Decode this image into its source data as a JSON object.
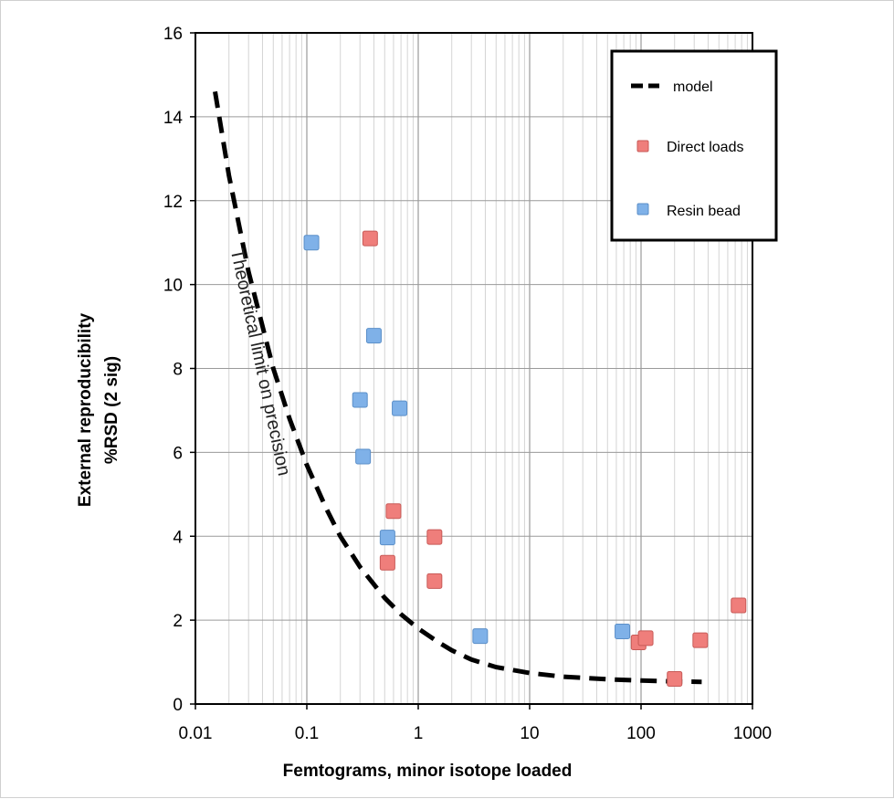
{
  "chart_data": {
    "type": "scatter",
    "title": "",
    "xlabel": "Femtograms, minor isotope loaded",
    "ylabel": "External reproducibility %RSD (2 sig)",
    "ylabel_lines": [
      "External reproducibility",
      "%RSD (2 sig)"
    ],
    "xscale": "log",
    "xlim": [
      0.01,
      1000
    ],
    "ylim": [
      0,
      16
    ],
    "xticks": [
      0.01,
      0.1,
      1,
      10,
      100,
      1000
    ],
    "xtick_labels": [
      "0.01",
      "0.1",
      "1",
      "10",
      "100",
      "1000"
    ],
    "yticks": [
      0,
      2,
      4,
      6,
      8,
      10,
      12,
      14,
      16
    ],
    "ytick_labels": [
      "0",
      "2",
      "4",
      "6",
      "8",
      "10",
      "12",
      "14",
      "16"
    ],
    "grid": true,
    "legend_position": "top-right",
    "annotation": "Theoretical limit on precision",
    "series": [
      {
        "name": "model",
        "kind": "dashed-line",
        "color": "#000000",
        "points": [
          [
            0.015,
            14.6
          ],
          [
            0.02,
            12.6
          ],
          [
            0.03,
            10.3
          ],
          [
            0.05,
            8.0
          ],
          [
            0.07,
            6.8
          ],
          [
            0.1,
            5.7
          ],
          [
            0.15,
            4.65
          ],
          [
            0.2,
            4.0
          ],
          [
            0.3,
            3.27
          ],
          [
            0.5,
            2.53
          ],
          [
            0.7,
            2.14
          ],
          [
            1,
            1.8
          ],
          [
            1.5,
            1.48
          ],
          [
            2,
            1.28
          ],
          [
            3,
            1.06
          ],
          [
            5,
            0.88
          ],
          [
            10,
            0.74
          ],
          [
            20,
            0.65
          ],
          [
            50,
            0.59
          ],
          [
            100,
            0.56
          ],
          [
            200,
            0.54
          ],
          [
            350,
            0.53
          ]
        ]
      },
      {
        "name": "Direct loads",
        "kind": "square-markers",
        "color": "#ef7e7b",
        "stroke": "#c85a57",
        "points": [
          [
            0.37,
            11.1
          ],
          [
            0.6,
            4.6
          ],
          [
            0.53,
            3.37
          ],
          [
            1.4,
            3.98
          ],
          [
            1.4,
            2.93
          ],
          [
            95,
            1.47
          ],
          [
            110,
            1.57
          ],
          [
            200,
            0.6
          ],
          [
            340,
            1.52
          ],
          [
            750,
            2.35
          ]
        ]
      },
      {
        "name": "Resin bead",
        "kind": "square-markers",
        "color": "#7fb1e8",
        "stroke": "#5b8fc8",
        "points": [
          [
            0.11,
            11.0
          ],
          [
            0.4,
            8.78
          ],
          [
            0.3,
            7.25
          ],
          [
            0.68,
            7.05
          ],
          [
            0.32,
            5.9
          ],
          [
            0.53,
            3.97
          ],
          [
            3.6,
            1.62
          ],
          [
            68,
            1.73
          ]
        ]
      }
    ]
  }
}
